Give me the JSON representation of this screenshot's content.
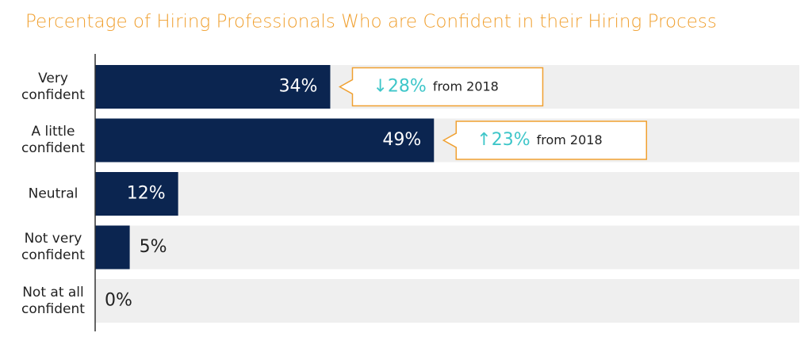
{
  "chart_data": {
    "type": "bar",
    "orientation": "horizontal",
    "title": "Percentage of Hiring Professionals Who are Confident in their Hiring Process",
    "categories": [
      "Very confident",
      "A little confident",
      "Neutral",
      "Not very confident",
      "Not at all confident"
    ],
    "values": [
      34,
      49,
      12,
      5,
      0
    ],
    "value_labels": [
      "34%",
      "49%",
      "12%",
      "5%",
      "0%"
    ],
    "color": "#0b2550",
    "annotations": [
      {
        "change": "↓28%",
        "text": "from 2018"
      },
      {
        "change": "↑23%",
        "text": "from 2018"
      }
    ]
  }
}
